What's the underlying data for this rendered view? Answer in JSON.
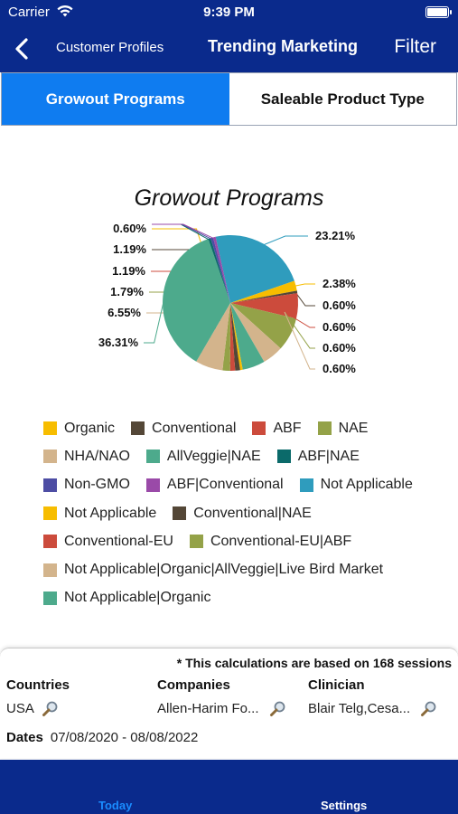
{
  "status": {
    "carrier": "Carrier",
    "time": "9:39 PM"
  },
  "nav": {
    "back_label": "Customer Profiles",
    "title": "Trending Marketing",
    "filter_label": "Filter"
  },
  "segments": [
    {
      "label": "Growout Programs",
      "active": true
    },
    {
      "label": "Saleable Product Type",
      "active": false
    }
  ],
  "chart_data": {
    "type": "pie",
    "title": "Growout Programs",
    "slices": [
      {
        "name": "Organic",
        "value": 0.6,
        "label": "0.60%",
        "color": "#f7bd00"
      },
      {
        "name": "Conventional",
        "value": 1.19,
        "label": "1.19%",
        "color": "#544737"
      },
      {
        "name": "ABF",
        "value": 1.19,
        "label": "1.19%",
        "color": "#cc4b3c"
      },
      {
        "name": "NAE",
        "value": 1.79,
        "label": "1.79%",
        "color": "#94a248"
      },
      {
        "name": "NHA/NAO",
        "value": 6.55,
        "label": "6.55%",
        "color": "#d3b48c"
      },
      {
        "name": "AllVeggie|NAE",
        "value": 36.31,
        "label": "36.31%",
        "color": "#4daa8c"
      },
      {
        "name": "ABF|NAE",
        "value": 0.6,
        "label": "0.60%",
        "color": "#0b6a6a"
      },
      {
        "name": "Non-GMO",
        "value": 0.6,
        "label": "0.60%",
        "color": "#4d4da4"
      },
      {
        "name": "ABF|Conventional",
        "value": 0.6,
        "label": "0.60%",
        "color": "#9a4aa8"
      },
      {
        "name": "Not Applicable",
        "value": 23.21,
        "label": "23.21%",
        "color": "#2f9cbd"
      },
      {
        "name": "Not Applicable",
        "value": 2.38,
        "label": "2.38%",
        "color": "#f7bd00"
      },
      {
        "name": "Conventional|NAE",
        "value": 0.6,
        "label": "0.60%",
        "color": "#544737"
      },
      {
        "name": "Conventional-EU",
        "value": 6.0,
        "label": "",
        "color": "#cc4b3c"
      },
      {
        "name": "Conventional-EU|ABF",
        "value": 8.0,
        "label": "",
        "color": "#94a248"
      },
      {
        "name": "Not Applicable|Organic|AllVeggie|Live Bird Market",
        "value": 5.0,
        "label": "",
        "color": "#d3b48c"
      },
      {
        "name": "Not Applicable|Organic",
        "value": 5.4,
        "label": "",
        "color": "#4daa8c"
      }
    ]
  },
  "legend": [
    {
      "label": "Organic",
      "color": "#f7bd00"
    },
    {
      "label": "Conventional",
      "color": "#544737"
    },
    {
      "label": "ABF",
      "color": "#cc4b3c"
    },
    {
      "label": "NAE",
      "color": "#94a248"
    },
    {
      "label": "NHA/NAO",
      "color": "#d3b48c"
    },
    {
      "label": "AllVeggie|NAE",
      "color": "#4daa8c"
    },
    {
      "label": "ABF|NAE",
      "color": "#0b6a6a"
    },
    {
      "label": "Non-GMO",
      "color": "#4d4da4"
    },
    {
      "label": "ABF|Conventional",
      "color": "#9a4aa8"
    },
    {
      "label": "Not Applicable",
      "color": "#2f9cbd"
    },
    {
      "label": "Not Applicable",
      "color": "#f7bd00"
    },
    {
      "label": "Conventional|NAE",
      "color": "#544737"
    },
    {
      "label": "Conventional-EU",
      "color": "#cc4b3c"
    },
    {
      "label": "Conventional-EU|ABF",
      "color": "#94a248"
    },
    {
      "label": "Not Applicable|Organic|AllVeggie|Live Bird Market",
      "color": "#d3b48c"
    },
    {
      "label": "Not Applicable|Organic",
      "color": "#4daa8c"
    }
  ],
  "info": {
    "sessions_note": "* This calculations are based on 168 sessions",
    "countries_label": "Countries",
    "countries_value": "USA",
    "companies_label": "Companies",
    "companies_value": "Allen-Harim Fo...",
    "clinician_label": "Clinician",
    "clinician_value": "Blair Telg,Cesa...",
    "dates_label": "Dates",
    "dates_value": "07/08/2020 - 08/08/2022"
  },
  "tabs": {
    "today": "Today",
    "settings": "Settings"
  }
}
